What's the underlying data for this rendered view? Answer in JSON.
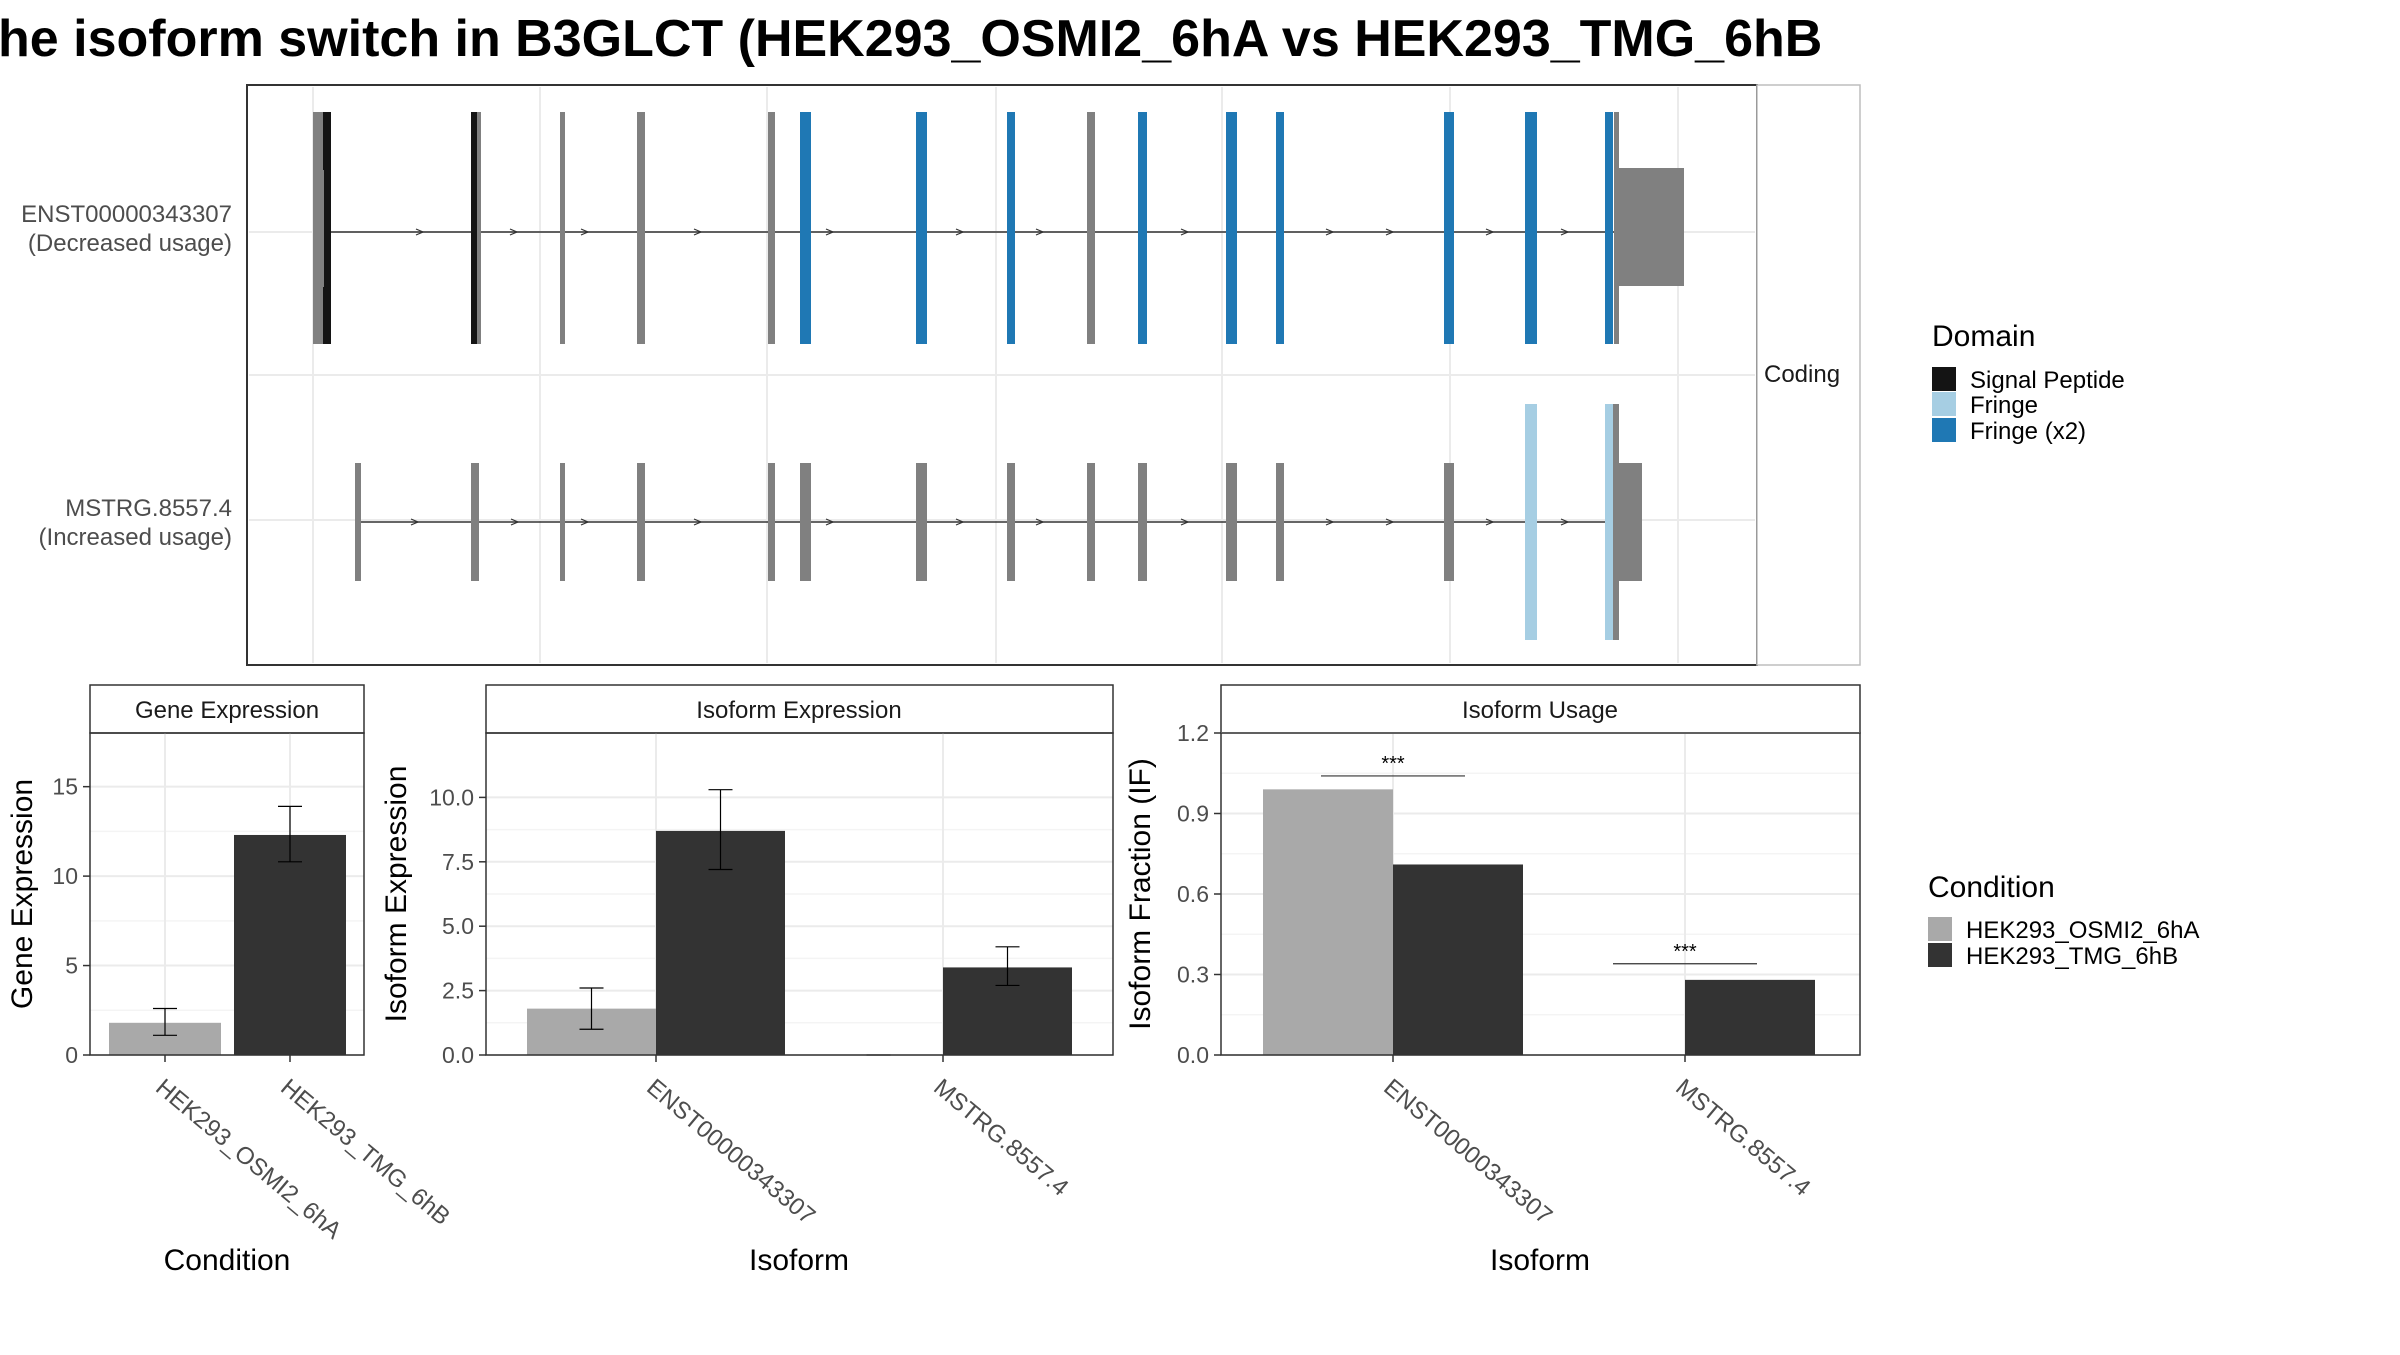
{
  "page_title": "he isoform switch in B3GLCT (HEK293_OSMI2_6hA vs HEK293_TMG_6hB",
  "colors": {
    "signal_peptide": "#141414",
    "fringe": "#a6cee3",
    "fringe_x2": "#1f78b4",
    "noncoding_exon": "#808080",
    "condition_a": "#a9a9a9",
    "condition_b": "#333333",
    "panel_border": "#333333",
    "grid": "#ebebeb"
  },
  "isoform_structure": {
    "strip_label": "Coding",
    "isoforms": [
      {
        "id": "ENST00000343307",
        "label_line1": "ENST00000343307",
        "label_line2": "(Decreased usage)"
      },
      {
        "id": "MSTRG.8557.4",
        "label_line1": "MSTRG.8557.4",
        "label_line2": "(Increased usage)"
      }
    ]
  },
  "domain_legend": {
    "title": "Domain",
    "items": [
      {
        "label": "Signal Peptide",
        "color": "#141414"
      },
      {
        "label": "Fringe",
        "color": "#a6cee3"
      },
      {
        "label": "Fringe (x2)",
        "color": "#1f78b4"
      }
    ]
  },
  "condition_legend": {
    "title": "Condition",
    "items": [
      {
        "label": "HEK293_OSMI2_6hA",
        "color": "#a9a9a9"
      },
      {
        "label": "HEK293_TMG_6hB",
        "color": "#333333"
      }
    ]
  },
  "chart_data": [
    {
      "type": "bar",
      "title": "Gene Expression",
      "xlabel": "Condition",
      "ylabel": "Gene Expression",
      "ylim": [
        0,
        18
      ],
      "yticks": [
        0,
        5,
        10,
        15
      ],
      "ytick_labels": [
        "0",
        "5",
        "10",
        "15"
      ],
      "categories": [
        "HEK293_OSMI2_6hA",
        "HEK293_TMG_6hB"
      ],
      "values": [
        1.8,
        12.3
      ],
      "error_low": [
        1.1,
        10.8
      ],
      "error_high": [
        2.6,
        13.9
      ],
      "bar_colors": [
        "#a9a9a9",
        "#333333"
      ]
    },
    {
      "type": "bar",
      "title": "Isoform Expression",
      "xlabel": "Isoform",
      "ylabel": "Isoform Expression",
      "ylim": [
        0,
        12.5
      ],
      "yticks": [
        0,
        2.5,
        5,
        7.5,
        10
      ],
      "ytick_labels": [
        "0.0",
        "2.5",
        "5.0",
        "7.5",
        "10.0"
      ],
      "categories": [
        "ENST00000343307",
        "MSTRG.8557.4"
      ],
      "series": [
        {
          "name": "HEK293_OSMI2_6hA",
          "values": [
            1.8,
            0.0
          ],
          "error_low": [
            1.0,
            0.0
          ],
          "error_high": [
            2.6,
            0.0
          ]
        },
        {
          "name": "HEK293_TMG_6hB",
          "values": [
            8.7,
            3.4
          ],
          "error_low": [
            7.2,
            2.7
          ],
          "error_high": [
            10.3,
            4.2
          ]
        }
      ]
    },
    {
      "type": "bar",
      "title": "Isoform Usage",
      "xlabel": "Isoform",
      "ylabel": "Isoform Fraction (IF)",
      "ylim": [
        0,
        1.2
      ],
      "yticks": [
        0,
        0.3,
        0.6,
        0.9,
        1.2
      ],
      "ytick_labels": [
        "0.0",
        "0.3",
        "0.6",
        "0.9",
        "1.2"
      ],
      "categories": [
        "ENST00000343307",
        "MSTRG.8557.4"
      ],
      "series": [
        {
          "name": "HEK293_OSMI2_6hA",
          "values": [
            0.99,
            0.0
          ]
        },
        {
          "name": "HEK293_TMG_6hB",
          "values": [
            0.71,
            0.28
          ]
        }
      ],
      "significance": [
        {
          "label": "***",
          "level": 1.04
        },
        {
          "label": "***",
          "level": 0.34
        }
      ]
    }
  ]
}
